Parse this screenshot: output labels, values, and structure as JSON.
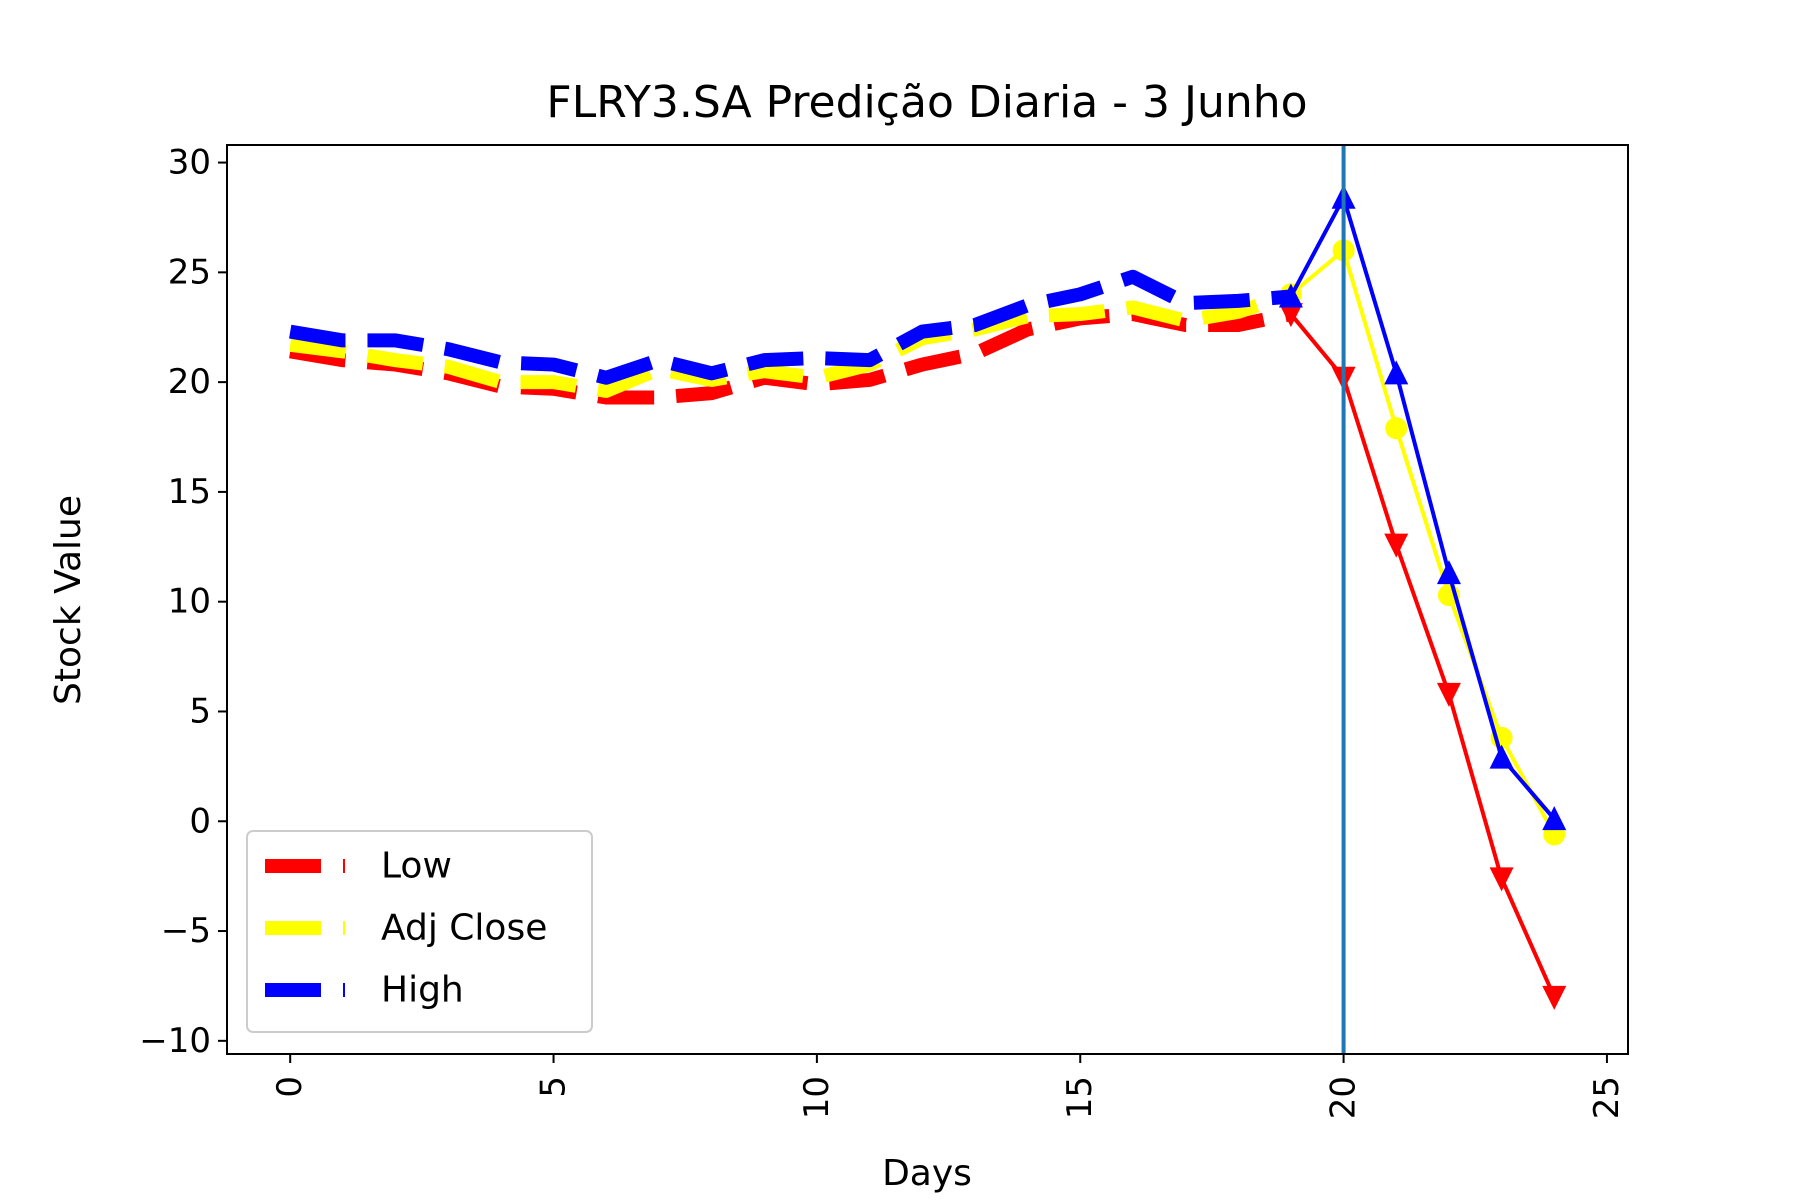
{
  "chart_data": {
    "type": "line",
    "title": "FLRY3.SA Predição Diaria - 3 Junho",
    "xlabel": "Days",
    "ylabel": "Stock Value",
    "xlim": [
      -1.2,
      25.4
    ],
    "ylim": [
      -10.6,
      30.8
    ],
    "xticks": [
      0,
      5,
      10,
      15,
      20,
      25
    ],
    "yticks": [
      -10,
      -5,
      0,
      5,
      10,
      15,
      20,
      25,
      30
    ],
    "xtick_labels": [
      "0",
      "5",
      "10",
      "15",
      "20",
      "25"
    ],
    "ytick_labels": [
      "−10",
      "−5",
      "0",
      "5",
      "10",
      "15",
      "20",
      "25",
      "30"
    ],
    "legend_position": "lower-left",
    "vertical_line_x": 20,
    "vertical_line_color": "#1f77b4",
    "series": [
      {
        "name": "Low",
        "color": "#ff0000",
        "marker": "triangle-down",
        "historical": {
          "x": [
            0,
            1,
            2,
            3,
            4,
            5,
            6,
            7,
            8,
            9,
            10,
            11,
            12,
            13,
            14,
            15,
            16,
            17,
            18,
            19
          ],
          "y": [
            21.4,
            21.0,
            20.8,
            20.4,
            19.8,
            19.7,
            19.3,
            19.3,
            19.5,
            20.2,
            19.9,
            20.1,
            20.8,
            21.3,
            22.4,
            22.9,
            23.1,
            22.6,
            22.6,
            23.1
          ]
        },
        "forecast": {
          "x": [
            19,
            20,
            21,
            22,
            23,
            24
          ],
          "y": [
            23.1,
            20.2,
            12.6,
            5.8,
            -2.6,
            -8.0
          ]
        }
      },
      {
        "name": "Adj Close",
        "color": "#ffff00",
        "marker": "circle",
        "historical": {
          "x": [
            0,
            1,
            2,
            3,
            4,
            5,
            6,
            7,
            8,
            9,
            10,
            11,
            12,
            13,
            14,
            15,
            16,
            17,
            18,
            19
          ],
          "y": [
            21.7,
            21.4,
            21.0,
            20.7,
            20.0,
            20.0,
            19.6,
            20.6,
            20.1,
            20.5,
            20.2,
            20.8,
            22.0,
            22.4,
            23.0,
            23.1,
            23.4,
            22.8,
            23.2,
            24.0
          ]
        },
        "forecast": {
          "x": [
            19,
            20,
            21,
            22,
            23,
            24
          ],
          "y": [
            24.0,
            26.0,
            17.9,
            10.3,
            3.8,
            -0.6
          ]
        }
      },
      {
        "name": "High",
        "color": "#0000ff",
        "marker": "triangle-up",
        "historical": {
          "x": [
            0,
            1,
            2,
            3,
            4,
            5,
            6,
            7,
            8,
            9,
            10,
            11,
            12,
            13,
            14,
            15,
            16,
            17,
            18,
            19
          ],
          "y": [
            22.3,
            21.9,
            21.9,
            21.5,
            20.9,
            20.8,
            20.2,
            21.0,
            20.4,
            21.0,
            21.1,
            21.0,
            22.3,
            22.6,
            23.5,
            24.0,
            24.8,
            23.6,
            23.7,
            23.9
          ]
        },
        "forecast": {
          "x": [
            19,
            20,
            21,
            22,
            23,
            24
          ],
          "y": [
            23.9,
            28.4,
            20.4,
            11.3,
            2.9,
            0.1
          ]
        }
      }
    ]
  }
}
